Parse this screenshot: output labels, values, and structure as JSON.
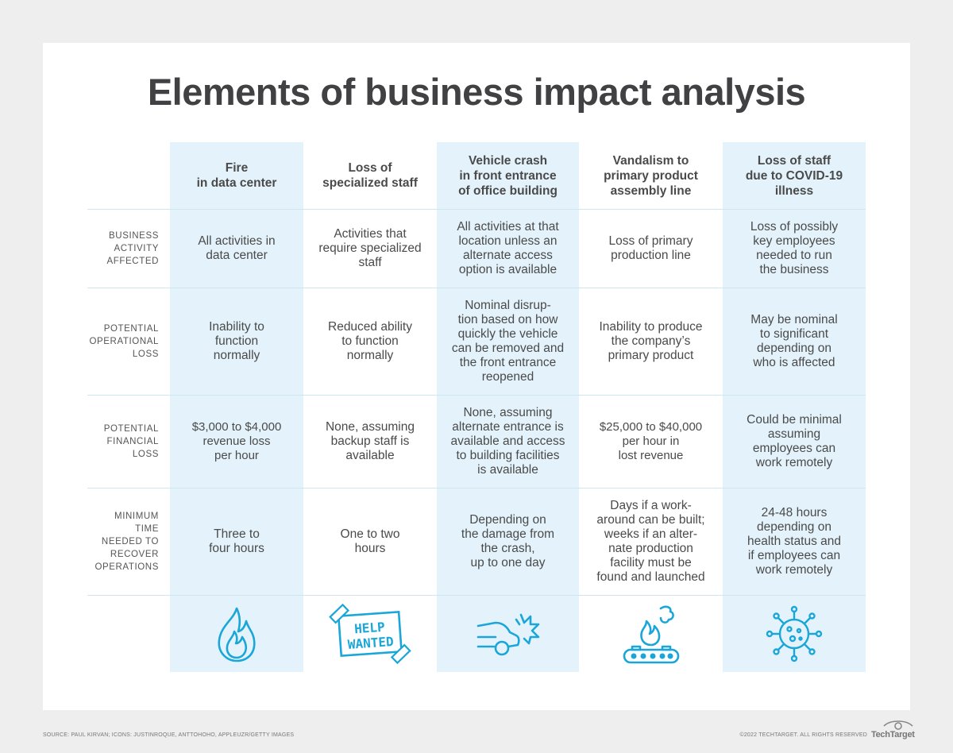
{
  "title": "Elements of business impact analysis",
  "columns": [
    "Fire\nin data center",
    "Loss of\nspecialized staff",
    "Vehicle crash\nin front entrance\nof office building",
    "Vandalism to\nprimary product\nassembly line",
    "Loss of staff\ndue to COVID-19\nillness"
  ],
  "rows": [
    {
      "label": "BUSINESS\nACTIVITY\nAFFECTED",
      "cells": [
        "All activities in\ndata center",
        "Activities that\nrequire specialized\nstaff",
        "All activities at that\nlocation unless an\nalternate access\noption is available",
        "Loss of primary\nproduction line",
        "Loss of possibly\nkey employees\nneeded to run\nthe business"
      ]
    },
    {
      "label": "POTENTIAL\nOPERATIONAL\nLOSS",
      "cells": [
        "Inability to\nfunction\nnormally",
        "Reduced ability\nto function\nnormally",
        "Nominal disrup-\ntion based on how\nquickly the vehicle\ncan be removed and\nthe front entrance\nreopened",
        "Inability to produce\nthe company’s\nprimary product",
        "May be nominal\nto significant\ndepending on\nwho is affected"
      ]
    },
    {
      "label": "POTENTIAL\nFINANCIAL\nLOSS",
      "cells": [
        "$3,000 to $4,000\nrevenue loss\nper hour",
        "None, assuming\nbackup staff is\navailable",
        "None, assuming\nalternate entrance is\navailable and access\nto building facilities\nis available",
        "$25,000 to $40,000\nper hour in\nlost revenue",
        "Could be minimal\nassuming\nemployees can\nwork remotely"
      ]
    },
    {
      "label": "MINIMUM\nTIME\nNEEDED TO\nRECOVER\nOPERATIONS",
      "cells": [
        "Three to\nfour hours",
        "One to two\nhours",
        "Depending on\nthe damage from\nthe crash,\nup to one day",
        "Days if a work-\naround can be built;\nweeks if an alter-\nnate production\nfacility must be\nfound and launched",
        "24-48 hours\ndepending on\nhealth status and\nif employees can\nwork remotely"
      ]
    }
  ],
  "icons": {
    "help_sign_line1": "HELP",
    "help_sign_line2": "WANTED"
  },
  "footer": {
    "source": "SOURCE: PAUL KIRVAN; ICONS: JUSTINROQUE, ANTTOHOHO, APPLEUZR/GETTY IMAGES",
    "copyright": "©2022 TECHTARGET. ALL RIGHTS RESERVED",
    "brand": "TechTarget"
  },
  "colors": {
    "column_shade": "#e4f3fb",
    "icon_blue": "#1aa6d9",
    "text": "#4a4a4a"
  }
}
